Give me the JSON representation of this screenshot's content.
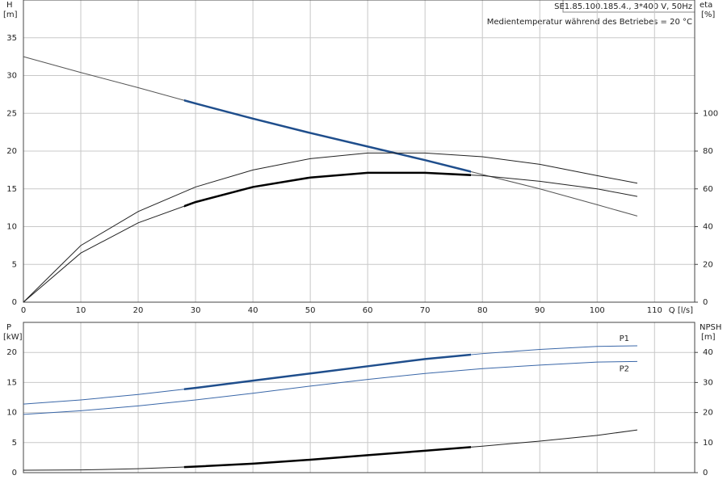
{
  "chart_data": [
    {
      "type": "line",
      "title": "SE1.85.100.185.4., 3*400 V, 50Hz",
      "subtitle": "Medientemperatur während des Betriebes = 20 °C",
      "ylabel": "H",
      "yunit": "[m]",
      "y2label": "eta",
      "y2unit": "[%]",
      "xlabel": "Q [l/s]",
      "x": [
        0,
        10,
        20,
        30,
        40,
        50,
        60,
        70,
        80,
        90,
        100,
        107
      ],
      "xlim": [
        0,
        117
      ],
      "xticks": [
        0,
        10,
        20,
        30,
        40,
        50,
        60,
        70,
        80,
        90,
        100,
        110
      ],
      "ylim": [
        0,
        40
      ],
      "yticks": [
        0,
        5,
        10,
        15,
        20,
        25,
        30,
        35
      ],
      "y2lim": [
        0,
        160
      ],
      "y2ticks": [
        0,
        20,
        40,
        60,
        80,
        100
      ],
      "grid": true,
      "series": [
        {
          "color": "#555555",
          "highlight_color": "#1f4e8c",
          "highlight": [
            28,
            78
          ],
          "values": [
            32.5,
            30.4,
            28.4,
            26.3,
            24.3,
            22.4,
            20.6,
            18.8,
            16.9,
            15.0,
            12.9,
            11.4
          ]
        },
        {
          "color": "#222222",
          "axis": "y2",
          "values": [
            0,
            30,
            48,
            61,
            70,
            76,
            79,
            79,
            77,
            73,
            67,
            63
          ]
        },
        {
          "color": "#222222",
          "highlight_color": "#000000",
          "highlight": [
            28,
            78
          ],
          "axis": "y2",
          "values": [
            0,
            26,
            42,
            53,
            61,
            66,
            68.5,
            68.5,
            67,
            64,
            60,
            56
          ]
        }
      ]
    },
    {
      "type": "line",
      "ylabel": "P",
      "yunit": "[kW]",
      "y2label": "NPSH",
      "y2unit": "[m]",
      "x": [
        0,
        10,
        20,
        30,
        40,
        50,
        60,
        70,
        80,
        90,
        100,
        107
      ],
      "xlim": [
        0,
        117
      ],
      "xticks": [
        0,
        10,
        20,
        30,
        40,
        50,
        60,
        70,
        80,
        90,
        100,
        110
      ],
      "ylim": [
        0,
        25
      ],
      "yticks": [
        0,
        5,
        10,
        15,
        20
      ],
      "y2lim": [
        0,
        50
      ],
      "y2ticks": [
        0,
        10,
        20,
        30,
        40
      ],
      "grid": true,
      "series": [
        {
          "name": "P1",
          "color": "#3a67a8",
          "highlight_color": "#1f4e8c",
          "highlight": [
            28,
            78
          ],
          "values": [
            11.4,
            12.1,
            13.0,
            14.1,
            15.3,
            16.5,
            17.7,
            18.9,
            19.8,
            20.5,
            21.0,
            21.1
          ]
        },
        {
          "name": "P2",
          "color": "#3a67a8",
          "values": [
            9.7,
            10.3,
            11.1,
            12.1,
            13.2,
            14.4,
            15.5,
            16.5,
            17.3,
            17.9,
            18.4,
            18.5
          ]
        },
        {
          "color": "#222222",
          "highlight_color": "#000000",
          "highlight": [
            28,
            78
          ],
          "axis": "y2",
          "values": [
            0.8,
            0.9,
            1.3,
            2.0,
            3.0,
            4.3,
            5.8,
            7.3,
            8.8,
            10.5,
            12.4,
            14.2
          ]
        }
      ]
    }
  ]
}
